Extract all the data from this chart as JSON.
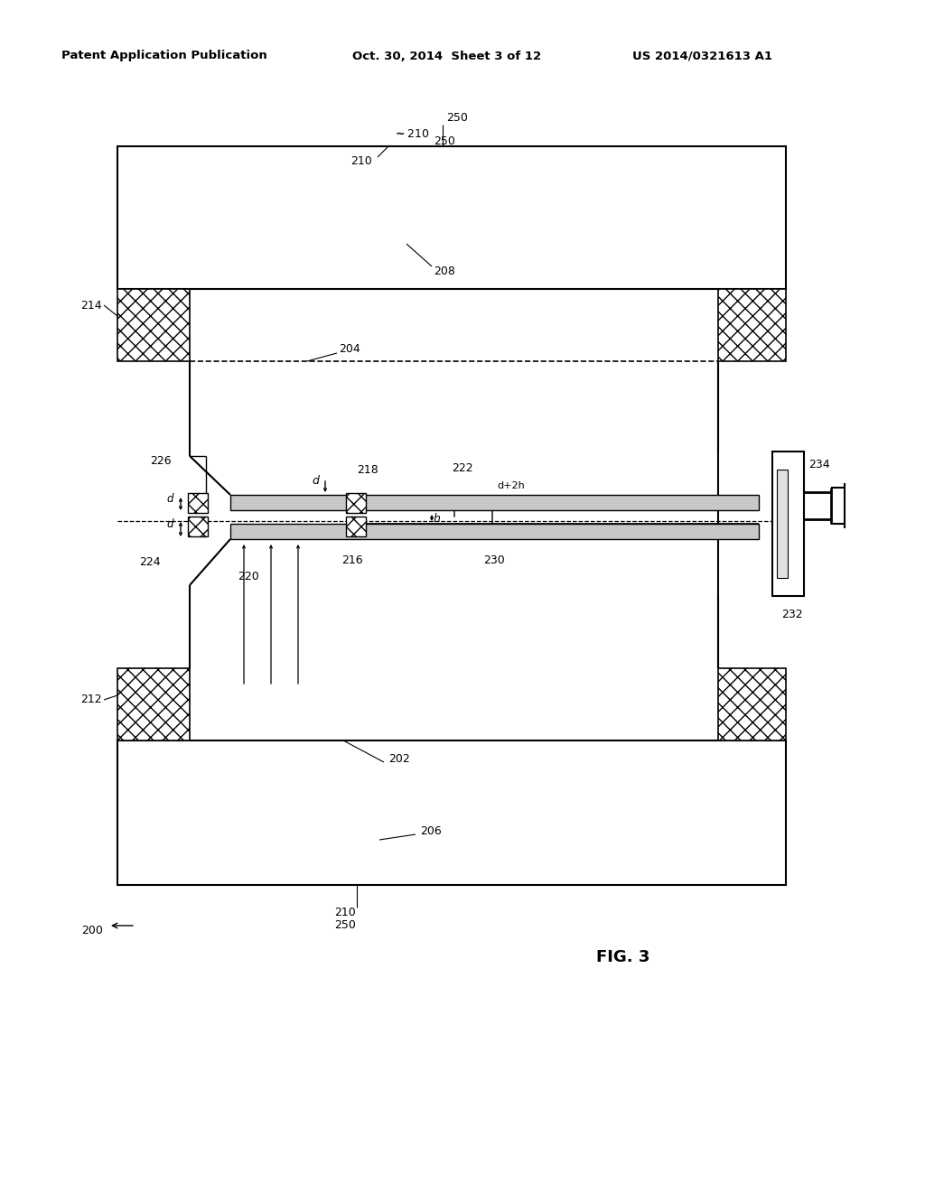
{
  "bg_color": "#ffffff",
  "header_left": "Patent Application Publication",
  "header_center": "Oct. 30, 2014  Sheet 3 of 12",
  "header_right": "US 2014/0321613 A1",
  "fig_label": "FIG. 3"
}
